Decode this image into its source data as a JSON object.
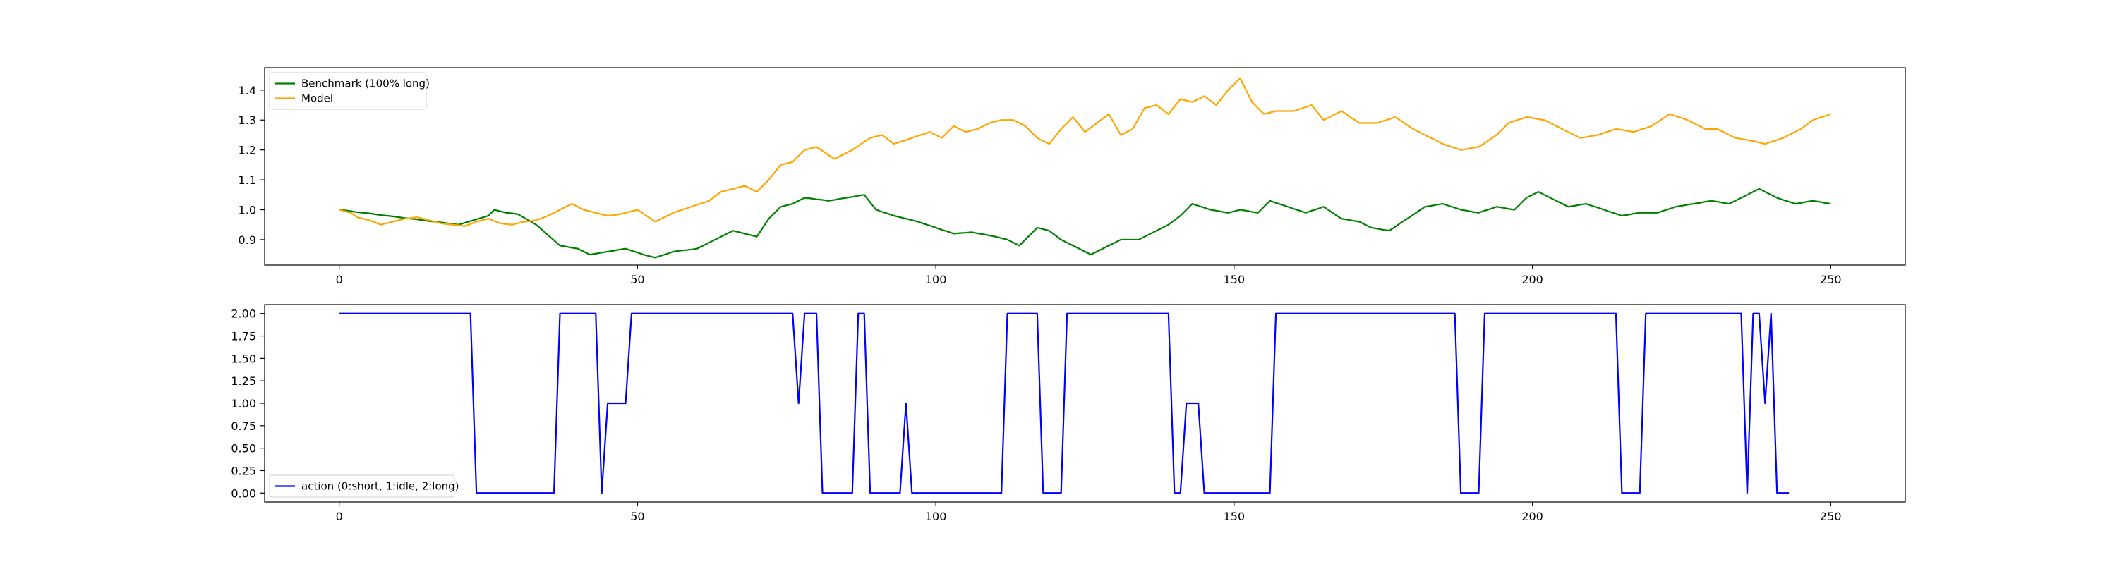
{
  "chart_data": [
    {
      "type": "line",
      "title": "",
      "xlabel": "",
      "ylabel": "",
      "xlim": [
        -12.5,
        262.5
      ],
      "ylim": [
        0.815,
        1.475
      ],
      "x_ticks": [
        0,
        50,
        100,
        150,
        200,
        250
      ],
      "y_ticks": [
        0.9,
        1.0,
        1.1,
        1.2,
        1.3,
        1.4
      ],
      "x_tick_labels": [
        "0",
        "50",
        "100",
        "150",
        "200",
        "250"
      ],
      "y_tick_labels": [
        "0.9",
        "1.0",
        "1.1",
        "1.2",
        "1.3",
        "1.4"
      ],
      "legend_position": "top-left",
      "grid": false,
      "x_start": 0,
      "series": [
        {
          "name": "Benchmark (100% long)",
          "color": "#008000",
          "anchors": [
            [
              0,
              null
            ],
            [
              20,
              0.95
            ],
            [
              25,
              0.98
            ],
            [
              26,
              1.0
            ],
            [
              28,
              0.99
            ],
            [
              30,
              0.985
            ],
            [
              33,
              0.95
            ],
            [
              37,
              0.88
            ],
            [
              40,
              0.87
            ],
            [
              42,
              0.85
            ],
            [
              45,
              0.86
            ],
            [
              48,
              0.87
            ],
            [
              51,
              0.85
            ],
            [
              53,
              0.84
            ],
            [
              56,
              0.86
            ],
            [
              60,
              0.87
            ],
            [
              63,
              0.9
            ],
            [
              66,
              0.93
            ],
            [
              70,
              0.91
            ],
            [
              72,
              0.97
            ],
            [
              74,
              1.01
            ],
            [
              76,
              1.02
            ],
            [
              78,
              1.04
            ],
            [
              80,
              1.035
            ],
            [
              82,
              1.03
            ],
            [
              85,
              1.04
            ],
            [
              88,
              1.05
            ],
            [
              90,
              1.0
            ],
            [
              93,
              0.98
            ],
            [
              97,
              0.96
            ],
            [
              100,
              0.94
            ],
            [
              103,
              0.92
            ],
            [
              106,
              0.925
            ],
            [
              110,
              0.91
            ],
            [
              112,
              0.9
            ],
            [
              114,
              0.88
            ],
            [
              117,
              0.94
            ],
            [
              119,
              0.93
            ],
            [
              121,
              0.9
            ],
            [
              124,
              0.87
            ],
            [
              126,
              0.85
            ],
            [
              129,
              0.88
            ],
            [
              131,
              0.9
            ],
            [
              134,
              0.9
            ],
            [
              136,
              0.92
            ],
            [
              139,
              0.95
            ],
            [
              141,
              0.98
            ],
            [
              143,
              1.02
            ],
            [
              146,
              1.0
            ],
            [
              149,
              0.99
            ],
            [
              151,
              1.0
            ],
            [
              154,
              0.99
            ],
            [
              156,
              1.03
            ],
            [
              159,
              1.01
            ],
            [
              162,
              0.99
            ],
            [
              165,
              1.01
            ],
            [
              168,
              0.97
            ],
            [
              171,
              0.96
            ],
            [
              173,
              0.94
            ],
            [
              176,
              0.93
            ],
            [
              179,
              0.97
            ],
            [
              182,
              1.01
            ],
            [
              185,
              1.02
            ],
            [
              188,
              1.0
            ],
            [
              191,
              0.99
            ],
            [
              194,
              1.01
            ],
            [
              197,
              1.0
            ],
            [
              199,
              1.04
            ],
            [
              201,
              1.06
            ],
            [
              204,
              1.03
            ],
            [
              206,
              1.01
            ],
            [
              209,
              1.02
            ],
            [
              212,
              1.0
            ],
            [
              215,
              0.98
            ],
            [
              218,
              0.99
            ],
            [
              221,
              0.99
            ],
            [
              224,
              1.01
            ],
            [
              227,
              1.02
            ],
            [
              230,
              1.03
            ],
            [
              233,
              1.02
            ],
            [
              236,
              1.05
            ],
            [
              238,
              1.07
            ],
            [
              241,
              1.04
            ],
            [
              244,
              1.02
            ],
            [
              247,
              1.03
            ],
            [
              250,
              1.02
            ]
          ],
          "anchors_note": "",
          "values": []
        },
        {
          "name": "Model",
          "color": "#ffa500",
          "values": []
        }
      ]
    },
    {
      "type": "line",
      "title": "",
      "xlabel": "",
      "ylabel": "",
      "xlim": [
        -12.5,
        262.5
      ],
      "ylim": [
        -0.1,
        2.1
      ],
      "x_ticks": [
        0,
        50,
        100,
        150,
        200,
        250
      ],
      "y_ticks": [
        0.0,
        0.25,
        0.5,
        0.75,
        1.0,
        1.25,
        1.5,
        1.75,
        2.0
      ],
      "x_tick_labels": [
        "0",
        "50",
        "100",
        "150",
        "200",
        "250"
      ],
      "y_tick_labels": [
        "0.00",
        "0.25",
        "0.50",
        "0.75",
        "1.00",
        "1.25",
        "1.50",
        "1.75",
        "2.00"
      ],
      "legend_position": "bottom-left",
      "grid": false,
      "x_start": 0,
      "series": [
        {
          "name": "action (0:short, 1:idle, 2:long)",
          "color": "#0000ff",
          "values": [
            2,
            2,
            2,
            2,
            2,
            2,
            2,
            2,
            2,
            2,
            2,
            2,
            2,
            2,
            2,
            2,
            2,
            2,
            2,
            2,
            2,
            2,
            2,
            0,
            0,
            0,
            0,
            0,
            0,
            0,
            0,
            0,
            0,
            0,
            0,
            0,
            0,
            2,
            2,
            2,
            2,
            2,
            2,
            2,
            0,
            1,
            1,
            1,
            1,
            2,
            2,
            2,
            2,
            2,
            2,
            2,
            2,
            2,
            2,
            2,
            2,
            2,
            2,
            2,
            2,
            2,
            2,
            2,
            2,
            2,
            2,
            2,
            2,
            2,
            2,
            2,
            2,
            1,
            2,
            2,
            2,
            0,
            0,
            0,
            0,
            0,
            0,
            2,
            2,
            0,
            0,
            0,
            0,
            0,
            0,
            1,
            0,
            0,
            0,
            0,
            0,
            0,
            0,
            0,
            0,
            0,
            0,
            0,
            0,
            0,
            0,
            0,
            2,
            2,
            2,
            2,
            2,
            2,
            0,
            0,
            0,
            0,
            2,
            2,
            2,
            2,
            2,
            2,
            2,
            2,
            2,
            2,
            2,
            2,
            2,
            2,
            2,
            2,
            2,
            2,
            0,
            0,
            1,
            1,
            1,
            0,
            0,
            0,
            0,
            0,
            0,
            0,
            0,
            0,
            0,
            0,
            0,
            2,
            2,
            2,
            2,
            2,
            2,
            2,
            2,
            2,
            2,
            2,
            2,
            2,
            2,
            2,
            2,
            2,
            2,
            2,
            2,
            2,
            2,
            2,
            2,
            2,
            2,
            2,
            2,
            2,
            2,
            2,
            0,
            0,
            0,
            0,
            2,
            2,
            2,
            2,
            2,
            2,
            2,
            2,
            2,
            2,
            2,
            2,
            2,
            2,
            2,
            2,
            2,
            2,
            2,
            2,
            2,
            2,
            2,
            0,
            0,
            0,
            0,
            2,
            2,
            2,
            2,
            2,
            2,
            2,
            2,
            2,
            2,
            2,
            2,
            2,
            2,
            2,
            2,
            2,
            0,
            2,
            2,
            1,
            2,
            0,
            0,
            0
          ]
        }
      ]
    }
  ]
}
